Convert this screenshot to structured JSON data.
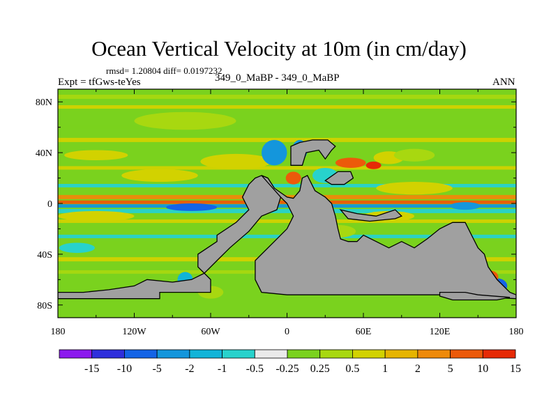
{
  "chart_data": {
    "type": "heatmap",
    "title": "Ocean Vertical Velocity at 10m (in cm/day)",
    "stats": "rmsd= 1.20804 diff= 0.0197232",
    "experiment": "Expt = tfGws-teYes",
    "comparison": "349_0_MaBP - 349_0_MaBP",
    "season": "ANN",
    "x_ticks": [
      "180",
      "120W",
      "60W",
      "0",
      "60E",
      "120E",
      "180"
    ],
    "x_tick_values": [
      -180,
      -120,
      -60,
      0,
      60,
      120,
      180
    ],
    "y_ticks": [
      "80N",
      "40N",
      "0",
      "40S",
      "80S"
    ],
    "y_tick_values": [
      80,
      40,
      0,
      -40,
      -80
    ],
    "xlim": [
      -180,
      180
    ],
    "ylim": [
      -90,
      90
    ],
    "contour_levels": [
      "-15",
      "-10",
      "-5",
      "-2",
      "-1",
      "-0.5",
      "-0.25",
      "0.25",
      "0.5",
      "1",
      "2",
      "5",
      "10",
      "15"
    ],
    "colors": [
      "#8c1aee",
      "#2f2fdc",
      "#1464e6",
      "#1496dc",
      "#12b4d8",
      "#28d2cc",
      "#eaeaea",
      "#7ad21e",
      "#a8d810",
      "#d2d200",
      "#e6b400",
      "#ee8a0a",
      "#ec5a0a",
      "#e62a06"
    ],
    "land_color": "#a0a0a0",
    "bands": [
      {
        "lat": 84,
        "band_value": 0.3
      },
      {
        "lat": 76,
        "band_value": 0.7
      },
      {
        "lat": 60,
        "band_value": 0.2
      },
      {
        "lat": 50,
        "band_value": 0.6
      },
      {
        "lat": 28,
        "band_value": 0.7
      },
      {
        "lat": 14,
        "band_value": -0.6
      },
      {
        "lat": 5,
        "band_value": 3
      },
      {
        "lat": 1,
        "band_value": 7
      },
      {
        "lat": -2,
        "band_value": -3
      },
      {
        "lat": -6,
        "band_value": -0.6
      },
      {
        "lat": -14,
        "band_value": 0.8
      },
      {
        "lat": -26,
        "band_value": -0.7
      },
      {
        "lat": -44,
        "band_value": 0.6
      },
      {
        "lat": -54,
        "band_value": 0.3
      }
    ],
    "blobs": [
      {
        "lon": -40,
        "lat": 33,
        "rx": 28,
        "ry": 6,
        "value": 0.7
      },
      {
        "lon": -100,
        "lat": 22,
        "rx": 30,
        "ry": 5,
        "value": 0.6
      },
      {
        "lon": -150,
        "lat": 38,
        "rx": 25,
        "ry": 4,
        "value": 0.8
      },
      {
        "lon": -80,
        "lat": 65,
        "rx": 40,
        "ry": 7,
        "value": 0.5
      },
      {
        "lon": -10,
        "lat": 40,
        "rx": 10,
        "ry": 10,
        "value": -2
      },
      {
        "lon": 5,
        "lat": 20,
        "rx": 6,
        "ry": 5,
        "value": 6
      },
      {
        "lon": 10,
        "lat": 42,
        "rx": 6,
        "ry": 8,
        "value": -4
      },
      {
        "lon": 30,
        "lat": 22,
        "rx": 10,
        "ry": 6,
        "value": -0.6
      },
      {
        "lon": 50,
        "lat": 32,
        "rx": 12,
        "ry": 4,
        "value": 6
      },
      {
        "lon": 68,
        "lat": 30,
        "rx": 6,
        "ry": 3,
        "value": 12
      },
      {
        "lon": 80,
        "lat": 36,
        "rx": 12,
        "ry": 5,
        "value": 0.6
      },
      {
        "lon": 100,
        "lat": 38,
        "rx": 16,
        "ry": 5,
        "value": 0.3
      },
      {
        "lon": 100,
        "lat": 12,
        "rx": 30,
        "ry": 5,
        "value": 0.7
      },
      {
        "lon": -75,
        "lat": -3,
        "rx": 20,
        "ry": 3,
        "value": -6
      },
      {
        "lon": -20,
        "lat": -2,
        "rx": 10,
        "ry": 3,
        "value": 6
      },
      {
        "lon": 140,
        "lat": -2,
        "rx": 12,
        "ry": 3,
        "value": -2
      },
      {
        "lon": -60,
        "lat": -70,
        "rx": 10,
        "ry": 5,
        "value": 0.5
      },
      {
        "lon": -80,
        "lat": -60,
        "rx": 6,
        "ry": 6,
        "value": -1
      },
      {
        "lon": 165,
        "lat": -65,
        "rx": 8,
        "ry": 6,
        "value": -5
      },
      {
        "lon": 160,
        "lat": -58,
        "rx": 6,
        "ry": 5,
        "value": 6
      },
      {
        "lon": 40,
        "lat": -22,
        "rx": 14,
        "ry": 5,
        "value": 0.5
      },
      {
        "lon": 80,
        "lat": -10,
        "rx": 20,
        "ry": 4,
        "value": 0.8
      },
      {
        "lon": -150,
        "lat": -10,
        "rx": 30,
        "ry": 4,
        "value": 0.6
      },
      {
        "lon": -165,
        "lat": -35,
        "rx": 14,
        "ry": 4,
        "value": -0.6
      }
    ],
    "land_polygons": [
      {
        "name": "americas",
        "points": [
          [
            -180,
            -70
          ],
          [
            -180,
            -75
          ],
          [
            -100,
            -75
          ],
          [
            -100,
            -70
          ],
          [
            -60,
            -70
          ],
          [
            -60,
            -60
          ],
          [
            -70,
            -50
          ],
          [
            -70,
            -40
          ],
          [
            -55,
            -30
          ],
          [
            -55,
            -25
          ],
          [
            -40,
            -15
          ],
          [
            -30,
            -5
          ],
          [
            -35,
            5
          ],
          [
            -30,
            15
          ],
          [
            -25,
            20
          ],
          [
            -20,
            22
          ],
          [
            -15,
            20
          ],
          [
            -10,
            12
          ],
          [
            -5,
            5
          ],
          [
            -8,
            -5
          ],
          [
            -20,
            -10
          ],
          [
            -30,
            -22
          ],
          [
            -45,
            -35
          ],
          [
            -55,
            -45
          ],
          [
            -65,
            -55
          ],
          [
            -75,
            -60
          ],
          [
            -90,
            -62
          ],
          [
            -110,
            -60
          ],
          [
            -120,
            -65
          ],
          [
            -140,
            -68
          ],
          [
            -160,
            -70
          ]
        ]
      },
      {
        "name": "africa",
        "points": [
          [
            -20,
            22
          ],
          [
            -15,
            20
          ],
          [
            -10,
            12
          ],
          [
            0,
            5
          ],
          [
            5,
            4
          ],
          [
            10,
            10
          ],
          [
            12,
            20
          ],
          [
            16,
            22
          ],
          [
            22,
            10
          ],
          [
            30,
            5
          ],
          [
            35,
            0
          ],
          [
            38,
            -10
          ],
          [
            40,
            -20
          ],
          [
            42,
            -28
          ],
          [
            48,
            -30
          ],
          [
            55,
            -30
          ],
          [
            60,
            -25
          ],
          [
            70,
            -30
          ],
          [
            80,
            -35
          ],
          [
            90,
            -30
          ],
          [
            100,
            -35
          ],
          [
            110,
            -28
          ],
          [
            120,
            -20
          ],
          [
            130,
            -15
          ],
          [
            140,
            -15
          ],
          [
            145,
            -25
          ],
          [
            150,
            -35
          ],
          [
            155,
            -40
          ],
          [
            158,
            -50
          ],
          [
            165,
            -60
          ],
          [
            175,
            -70
          ],
          [
            180,
            -72
          ],
          [
            180,
            -75
          ],
          [
            120,
            -72
          ],
          [
            80,
            -72
          ],
          [
            30,
            -72
          ],
          [
            0,
            -72
          ],
          [
            -20,
            -70
          ],
          [
            -25,
            -60
          ],
          [
            -25,
            -45
          ],
          [
            -10,
            -30
          ],
          [
            0,
            -20
          ],
          [
            5,
            -10
          ],
          [
            0,
            0
          ],
          [
            -5,
            5
          ]
        ]
      },
      {
        "name": "europe",
        "points": [
          [
            3,
            45
          ],
          [
            3,
            30
          ],
          [
            12,
            30
          ],
          [
            15,
            40
          ],
          [
            25,
            42
          ],
          [
            30,
            35
          ],
          [
            35,
            42
          ],
          [
            38,
            45
          ],
          [
            32,
            50
          ],
          [
            20,
            50
          ],
          [
            10,
            48
          ]
        ]
      },
      {
        "name": "arabia",
        "points": [
          [
            30,
            18
          ],
          [
            35,
            15
          ],
          [
            45,
            15
          ],
          [
            52,
            20
          ],
          [
            50,
            25
          ],
          [
            40,
            25
          ]
        ]
      },
      {
        "name": "asia-south",
        "points": [
          [
            42,
            -5
          ],
          [
            55,
            -8
          ],
          [
            70,
            -10
          ],
          [
            85,
            -5
          ],
          [
            90,
            -10
          ],
          [
            85,
            -12
          ],
          [
            65,
            -14
          ],
          [
            48,
            -12
          ]
        ]
      },
      {
        "name": "antarctic-islands",
        "points": [
          [
            120,
            -73
          ],
          [
            120,
            -70
          ],
          [
            140,
            -70
          ],
          [
            150,
            -72
          ],
          [
            175,
            -74
          ],
          [
            165,
            -76
          ],
          [
            130,
            -76
          ]
        ]
      }
    ]
  }
}
